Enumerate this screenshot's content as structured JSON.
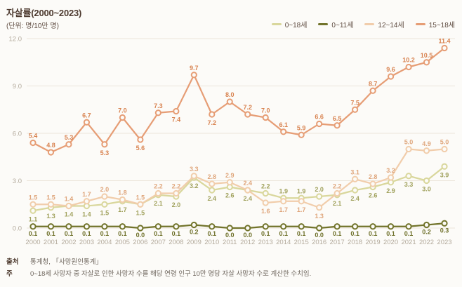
{
  "header": {
    "title": "자살률(2000~2023)",
    "unit": "(단위: 명/10만 명)"
  },
  "chart_data": {
    "type": "line",
    "title": "자살률(2000~2023)",
    "unit_label": "명/10만 명",
    "x": [
      2000,
      2001,
      2002,
      2003,
      2004,
      2005,
      2006,
      2007,
      2008,
      2009,
      2010,
      2011,
      2012,
      2013,
      2014,
      2015,
      2016,
      2017,
      2018,
      2019,
      2020,
      2021,
      2022,
      2023
    ],
    "ylim": [
      0,
      12
    ],
    "yticks": [
      "0.0",
      "3.0",
      "6.0",
      "9.0",
      "12.0"
    ],
    "grid": true,
    "legend_position": "top-right",
    "series": [
      {
        "name": "0~18세",
        "color": "#d9d79c",
        "label_color": "#a0a15c",
        "values": [
          1.1,
          1.3,
          1.4,
          1.4,
          1.5,
          1.7,
          1.5,
          2.1,
          2.0,
          3.2,
          2.4,
          2.6,
          2.4,
          2.2,
          1.9,
          1.9,
          2.0,
          2.1,
          2.4,
          2.6,
          2.9,
          3.3,
          3.0,
          3.9
        ]
      },
      {
        "name": "0~11세",
        "color": "#72742b",
        "label_color": "#6d6f28",
        "values": [
          0.1,
          0.1,
          0.1,
          0.1,
          0.1,
          0.1,
          0.0,
          0.1,
          0.1,
          0.2,
          0.1,
          0.0,
          0.0,
          0.1,
          0.1,
          0.1,
          0.0,
          0.1,
          0.1,
          0.1,
          0.1,
          0.1,
          0.2,
          0.3
        ]
      },
      {
        "name": "12~14세",
        "color": "#f1cdab",
        "label_color": "#dfa67c",
        "values": [
          1.5,
          1.5,
          1.4,
          1.7,
          2.0,
          1.8,
          1.5,
          2.2,
          2.2,
          3.3,
          2.8,
          2.9,
          2.4,
          1.6,
          1.7,
          1.7,
          1.3,
          2.2,
          3.1,
          2.8,
          3.2,
          5.0,
          4.9,
          5.0
        ]
      },
      {
        "name": "15~18세",
        "color": "#e69d75",
        "label_color": "#d8824f",
        "values": [
          5.4,
          4.8,
          5.3,
          6.7,
          5.3,
          7.0,
          5.6,
          7.3,
          7.4,
          9.7,
          7.2,
          8.0,
          7.2,
          7.0,
          6.1,
          5.9,
          6.6,
          6.5,
          7.5,
          8.7,
          9.6,
          10.2,
          10.5,
          11.4
        ]
      }
    ]
  },
  "footer": {
    "source_label": "출처",
    "source_text": "통계청, 「사망원인통계」",
    "note_label": "주",
    "note_text": "0~18세 사망자 중 자살로 인한 사망자 수를 해당 연령 인구 10만 명당 자살 사망자 수로 계산한 수치임."
  }
}
